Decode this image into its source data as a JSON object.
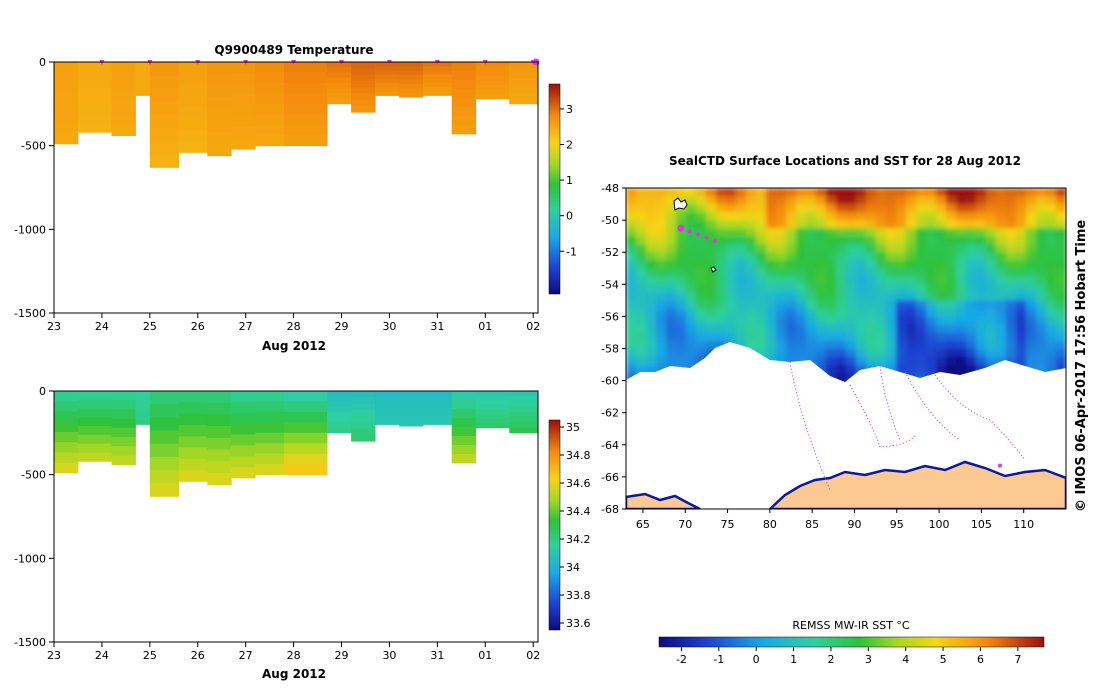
{
  "chart_data": [
    {
      "type": "heatmap",
      "title": "Q9900489  Temperature",
      "xlabel": "Aug 2012",
      "ylabel": "",
      "x_ticks": [
        "23",
        "24",
        "25",
        "26",
        "27",
        "28",
        "29",
        "30",
        "31",
        "01",
        "02"
      ],
      "y_ticks": [
        "0",
        "-500",
        "-1000",
        "-1500"
      ],
      "y_tick_values": [
        0,
        -500,
        -1000,
        -1500
      ],
      "ylim": [
        -1500,
        0
      ],
      "colorbar_ticks": [
        "3",
        "2",
        "1",
        "0",
        "-1"
      ],
      "colorbar_values": [
        3,
        2,
        1,
        0,
        -1
      ],
      "colorbar_range": [
        -2.2,
        3.7
      ],
      "profile_markers": 11,
      "profiles": [
        {
          "day": 23.0,
          "depth": -490,
          "surface": 2.6,
          "deep": 2.5
        },
        {
          "day": 23.5,
          "depth": -420,
          "surface": 2.5,
          "deep": 2.4
        },
        {
          "day": 24.2,
          "depth": -440,
          "surface": 2.6,
          "deep": 2.5
        },
        {
          "day": 24.7,
          "depth": -200,
          "surface": 2.5,
          "deep": 2.5
        },
        {
          "day": 25.0,
          "depth": -630,
          "surface": 2.7,
          "deep": 2.4
        },
        {
          "day": 25.6,
          "depth": -540,
          "surface": 2.6,
          "deep": 2.4
        },
        {
          "day": 26.2,
          "depth": -560,
          "surface": 2.7,
          "deep": 2.5
        },
        {
          "day": 26.7,
          "depth": -520,
          "surface": 2.7,
          "deep": 2.5
        },
        {
          "day": 27.2,
          "depth": -500,
          "surface": 2.8,
          "deep": 2.5
        },
        {
          "day": 27.8,
          "depth": -500,
          "surface": 2.9,
          "deep": 2.6
        },
        {
          "day": 28.7,
          "depth": -250,
          "surface": 3.0,
          "deep": 2.6
        },
        {
          "day": 29.2,
          "depth": -300,
          "surface": 3.1,
          "deep": 2.7
        },
        {
          "day": 29.7,
          "depth": -200,
          "surface": 3.1,
          "deep": 2.7
        },
        {
          "day": 30.2,
          "depth": -210,
          "surface": 3.1,
          "deep": 2.7
        },
        {
          "day": 30.7,
          "depth": -200,
          "surface": 3.0,
          "deep": 2.6
        },
        {
          "day": 31.3,
          "depth": -430,
          "surface": 2.9,
          "deep": 2.6
        },
        {
          "day": 31.8,
          "depth": -220,
          "surface": 2.8,
          "deep": 2.6
        },
        {
          "day": 32.5,
          "depth": -250,
          "surface": 2.7,
          "deep": 2.5
        }
      ]
    },
    {
      "type": "heatmap",
      "title": "",
      "xlabel": "Aug 2012",
      "ylabel": "",
      "x_ticks": [
        "23",
        "24",
        "25",
        "26",
        "27",
        "28",
        "29",
        "30",
        "31",
        "01",
        "02"
      ],
      "y_ticks": [
        "0",
        "-500",
        "-1000",
        "-1500"
      ],
      "y_tick_values": [
        0,
        -500,
        -1000,
        -1500
      ],
      "ylim": [
        -1500,
        0
      ],
      "colorbar_ticks": [
        "35",
        "34.8",
        "34.6",
        "34.4",
        "34.2",
        "34",
        "33.8",
        "33.6"
      ],
      "colorbar_values": [
        35,
        34.8,
        34.6,
        34.4,
        34.2,
        34,
        33.8,
        33.6
      ],
      "colorbar_range": [
        33.55,
        35.05
      ],
      "profiles": [
        {
          "day": 23.0,
          "depth": -490,
          "surface": 34.15,
          "deep": 34.6
        },
        {
          "day": 23.5,
          "depth": -420,
          "surface": 34.15,
          "deep": 34.55
        },
        {
          "day": 24.2,
          "depth": -440,
          "surface": 34.15,
          "deep": 34.55
        },
        {
          "day": 24.7,
          "depth": -200,
          "surface": 34.15,
          "deep": 34.2
        },
        {
          "day": 25.0,
          "depth": -630,
          "surface": 34.2,
          "deep": 34.6
        },
        {
          "day": 25.6,
          "depth": -540,
          "surface": 34.2,
          "deep": 34.6
        },
        {
          "day": 26.2,
          "depth": -560,
          "surface": 34.2,
          "deep": 34.6
        },
        {
          "day": 26.7,
          "depth": -520,
          "surface": 34.15,
          "deep": 34.6
        },
        {
          "day": 27.2,
          "depth": -500,
          "surface": 34.15,
          "deep": 34.6
        },
        {
          "day": 27.8,
          "depth": -500,
          "surface": 34.1,
          "deep": 34.7
        },
        {
          "day": 28.7,
          "depth": -250,
          "surface": 34.05,
          "deep": 34.2
        },
        {
          "day": 29.2,
          "depth": -300,
          "surface": 34.05,
          "deep": 34.25
        },
        {
          "day": 29.7,
          "depth": -200,
          "surface": 34.05,
          "deep": 34.1
        },
        {
          "day": 30.2,
          "depth": -210,
          "surface": 34.05,
          "deep": 34.1
        },
        {
          "day": 30.7,
          "depth": -200,
          "surface": 34.05,
          "deep": 34.1
        },
        {
          "day": 31.3,
          "depth": -430,
          "surface": 34.1,
          "deep": 34.55
        },
        {
          "day": 31.8,
          "depth": -220,
          "surface": 34.1,
          "deep": 34.25
        },
        {
          "day": 32.5,
          "depth": -250,
          "surface": 34.1,
          "deep": 34.3
        }
      ]
    },
    {
      "type": "heatmap",
      "title": "SealCTD Surface Locations and SST for 28 Aug 2012",
      "xlabel": "",
      "ylabel": "",
      "x_ticks": [
        "65",
        "70",
        "75",
        "80",
        "85",
        "90",
        "95",
        "100",
        "105",
        "110"
      ],
      "x_tick_values": [
        65,
        70,
        75,
        80,
        85,
        90,
        95,
        100,
        105,
        110
      ],
      "y_ticks": [
        "-48",
        "-50",
        "-52",
        "-54",
        "-56",
        "-58",
        "-60",
        "-62",
        "-64",
        "-66",
        "-68"
      ],
      "y_tick_values": [
        -48,
        -50,
        -52,
        -54,
        -56,
        -58,
        -60,
        -62,
        -64,
        -66,
        -68
      ],
      "xlim": [
        63,
        115
      ],
      "ylim": [
        -68,
        -48
      ],
      "colorbar_label": "REMSS MW-IR SST °C",
      "colorbar_ticks": [
        "-2",
        "-1",
        "0",
        "1",
        "2",
        "3",
        "4",
        "5",
        "6",
        "7"
      ],
      "colorbar_values": [
        -2,
        -1,
        0,
        1,
        2,
        3,
        4,
        5,
        6,
        7
      ],
      "colorbar_range": [
        -2.6,
        7.7
      ],
      "sst_by_latitude": [
        {
          "lat": -48,
          "sst": 6.0
        },
        {
          "lat": -50,
          "sst": 4.0
        },
        {
          "lat": -52,
          "sst": 2.6
        },
        {
          "lat": -54,
          "sst": 1.6
        },
        {
          "lat": -56,
          "sst": 0.8
        },
        {
          "lat": -58,
          "sst": 0.2
        },
        {
          "lat": -59.5,
          "sst": -0.8
        }
      ],
      "seal_locations": [
        {
          "lon": 69.5,
          "lat": -50.5
        },
        {
          "lon": 70.5,
          "lat": -50.7
        },
        {
          "lon": 71.5,
          "lat": -50.9
        },
        {
          "lon": 72.5,
          "lat": -51.1
        },
        {
          "lon": 73.5,
          "lat": -51.3
        },
        {
          "lon": 107.2,
          "lat": -65.3
        }
      ]
    }
  ],
  "watermark": "© IMOS 06-Apr-2017 17:56 Hobart Time"
}
